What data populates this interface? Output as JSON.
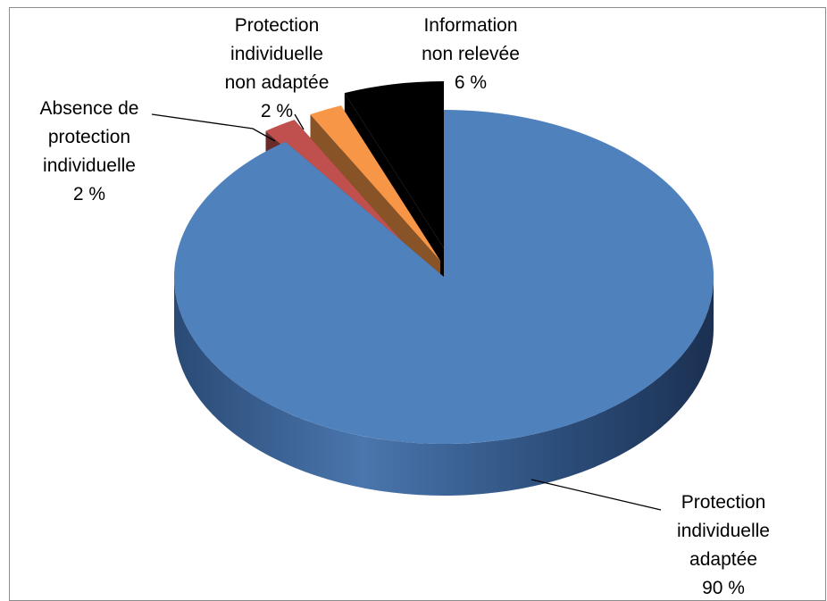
{
  "chart_data": {
    "type": "pie",
    "variant": "3d-exploded",
    "title": "",
    "slices": [
      {
        "label_lines": [
          "Protection",
          "individuelle",
          "adaptée"
        ],
        "value": 90,
        "value_label": "90 %",
        "color": "#4F81BD"
      },
      {
        "label_lines": [
          "Absence de",
          "protection",
          "individuelle"
        ],
        "value": 2,
        "value_label": "2 %",
        "color": "#C0504D"
      },
      {
        "label_lines": [
          "Protection",
          "individuelle",
          "non adaptée"
        ],
        "value": 2,
        "value_label": "2 %",
        "color": "#F79646"
      },
      {
        "label_lines": [
          "Information",
          "non relevée"
        ],
        "value": 6,
        "value_label": "6 %",
        "color": "#000000"
      }
    ],
    "legend": "none",
    "grid": false
  }
}
